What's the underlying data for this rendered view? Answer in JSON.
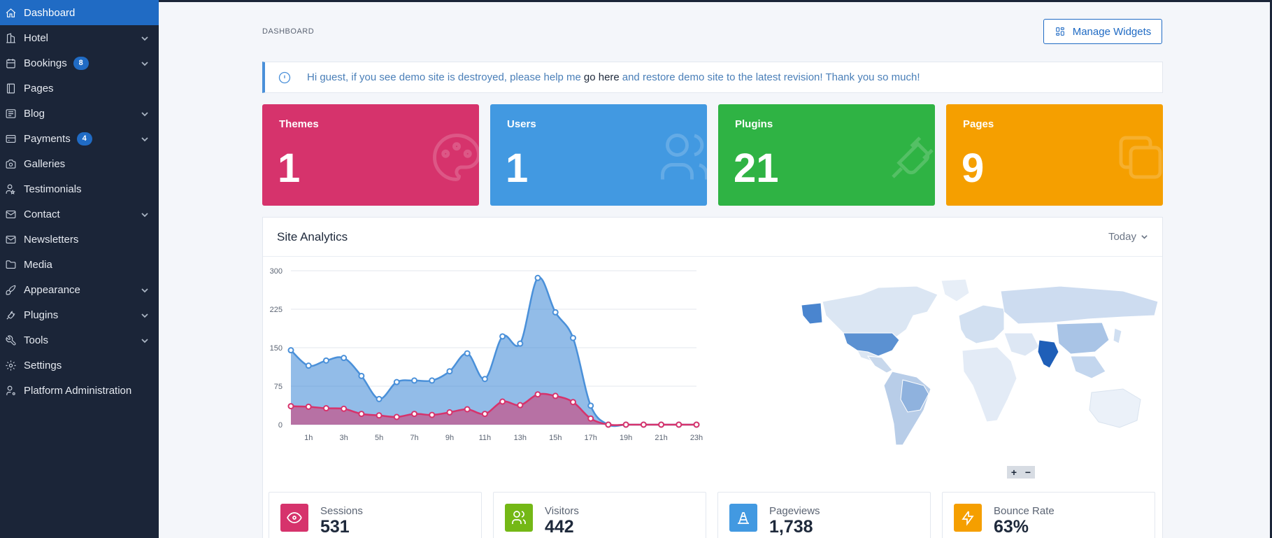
{
  "sidebar": {
    "items": [
      {
        "label": "Dashboard",
        "icon": "home-icon"
      },
      {
        "label": "Hotel",
        "icon": "building-icon"
      },
      {
        "label": "Bookings",
        "icon": "calendar-icon",
        "badge": "8"
      },
      {
        "label": "Pages",
        "icon": "book-icon"
      },
      {
        "label": "Blog",
        "icon": "article-icon"
      },
      {
        "label": "Payments",
        "icon": "credit-card-icon",
        "badge": "4"
      },
      {
        "label": "Galleries",
        "icon": "camera-icon"
      },
      {
        "label": "Testimonials",
        "icon": "user-star-icon"
      },
      {
        "label": "Contact",
        "icon": "mail-icon"
      },
      {
        "label": "Newsletters",
        "icon": "mail-icon"
      },
      {
        "label": "Media",
        "icon": "folder-icon"
      },
      {
        "label": "Appearance",
        "icon": "brush-icon"
      },
      {
        "label": "Plugins",
        "icon": "plug-icon"
      },
      {
        "label": "Tools",
        "icon": "tool-icon"
      },
      {
        "label": "Settings",
        "icon": "gear-icon"
      },
      {
        "label": "Platform Administration",
        "icon": "user-cog-icon"
      }
    ]
  },
  "header": {
    "pretitle": "DASHBOARD",
    "manage_widgets": "Manage Widgets"
  },
  "alert": {
    "before": "Hi guest, if you see demo site is destroyed, please help me",
    "link": "go here",
    "after": "and restore demo site to the latest revision! Thank you so much!"
  },
  "stats": [
    {
      "title": "Themes",
      "value": "1",
      "color": "#d6336c",
      "icon": "palette-icon"
    },
    {
      "title": "Users",
      "value": "1",
      "color": "#4299e1",
      "icon": "users-icon"
    },
    {
      "title": "Plugins",
      "value": "21",
      "color": "#2fb344",
      "icon": "plug-icon"
    },
    {
      "title": "Pages",
      "value": "9",
      "color": "#f59f00",
      "icon": "copy-icon"
    }
  ],
  "analytics": {
    "title": "Site Analytics",
    "range": "Today",
    "zoom_in": "+",
    "zoom_out": "−"
  },
  "chart_data": {
    "type": "area",
    "x": [
      "0h",
      "1h",
      "2h",
      "3h",
      "4h",
      "5h",
      "6h",
      "7h",
      "8h",
      "9h",
      "10h",
      "11h",
      "12h",
      "13h",
      "14h",
      "15h",
      "16h",
      "17h",
      "18h",
      "19h",
      "20h",
      "21h",
      "22h",
      "23h"
    ],
    "x_tick_labels": [
      "1h",
      "3h",
      "5h",
      "7h",
      "9h",
      "11h",
      "13h",
      "15h",
      "17h",
      "19h",
      "21h",
      "23h"
    ],
    "y_ticks": [
      0,
      75,
      150,
      225,
      300
    ],
    "ylim": [
      0,
      300
    ],
    "series": [
      {
        "color": "#4a90d9",
        "values": [
          145,
          115,
          125,
          130,
          95,
          50,
          83,
          86,
          86,
          104,
          139,
          89,
          172,
          158,
          286,
          219,
          169,
          37,
          0,
          0,
          0,
          0,
          0,
          0
        ]
      },
      {
        "color": "#d6336c",
        "values": [
          36,
          35,
          32,
          31,
          21,
          18,
          15,
          21,
          19,
          24,
          30,
          21,
          45,
          38,
          59,
          56,
          44,
          12,
          0,
          0,
          0,
          0,
          0,
          0
        ]
      }
    ]
  },
  "metrics": [
    {
      "label": "Sessions",
      "value": "531",
      "color": "#d6336c",
      "icon": "eye-icon"
    },
    {
      "label": "Visitors",
      "value": "442",
      "color": "#74b816",
      "icon": "users-icon"
    },
    {
      "label": "Pageviews",
      "value": "1,738",
      "color": "#4299e1",
      "icon": "traffic-cone-icon"
    },
    {
      "label": "Bounce Rate",
      "value": "63%",
      "color": "#f59f00",
      "icon": "bolt-icon"
    }
  ]
}
